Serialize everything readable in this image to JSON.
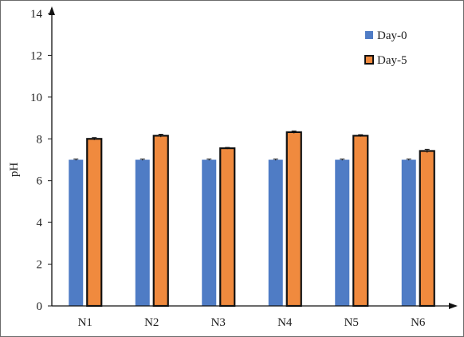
{
  "chart_data": {
    "type": "bar",
    "categories": [
      "N1",
      "N2",
      "N3",
      "N4",
      "N5",
      "N6"
    ],
    "series": [
      {
        "name": "Day-0",
        "values": [
          7.0,
          7.0,
          7.0,
          7.0,
          7.0,
          7.0
        ],
        "errors": [
          0.03,
          0.03,
          0.03,
          0.03,
          0.03,
          0.03
        ],
        "color": "#4f7cc5"
      },
      {
        "name": "Day-5",
        "values": [
          8.0,
          8.15,
          7.55,
          8.32,
          8.15,
          7.42
        ],
        "errors": [
          0.06,
          0.07,
          0.04,
          0.06,
          0.05,
          0.08
        ],
        "color": "#f08a3e",
        "outline": "#111111"
      }
    ],
    "title": "",
    "xlabel": "",
    "ylabel": "pH",
    "ylim": [
      0,
      14
    ],
    "yticks": [
      0,
      2,
      4,
      6,
      8,
      10,
      12,
      14
    ],
    "grid": false,
    "legend": "top-right"
  }
}
